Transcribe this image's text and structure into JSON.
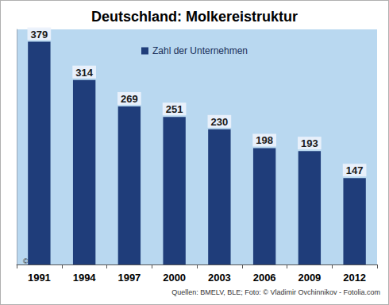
{
  "chart_data": {
    "type": "bar",
    "title": "Deutschland: Molkereistruktur",
    "categories": [
      "1991",
      "1994",
      "1997",
      "2000",
      "2003",
      "2006",
      "2009",
      "2012"
    ],
    "series": [
      {
        "name": "Zahl der Unternehmen",
        "color": "#1f3d7a",
        "values": [
          379,
          314,
          269,
          251,
          230,
          198,
          193,
          147
        ]
      }
    ],
    "ylim": [
      0,
      400
    ],
    "data_labels": true,
    "tick_labels": "x",
    "grid": false,
    "legend": "top",
    "annotations": [
      "© ZMB",
      "Quellen: BMELV, BLE; Foto: © Vladimir Ovchinnikov - Fotolia.com"
    ]
  }
}
